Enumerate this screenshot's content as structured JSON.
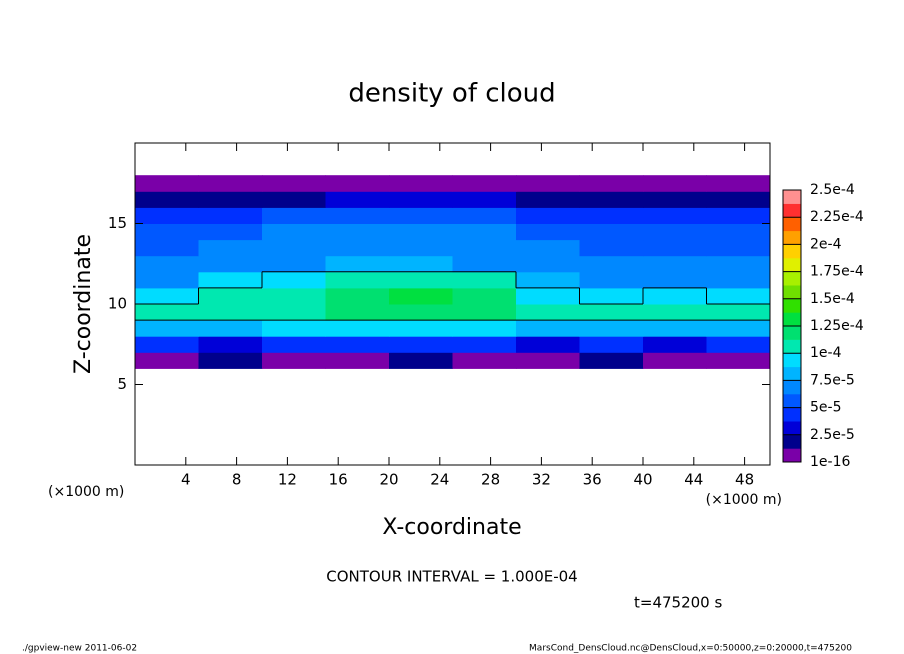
{
  "chart_data": {
    "type": "contour",
    "title": "density of cloud",
    "x_label": "X-coordinate",
    "y_label": "Z-coordinate",
    "x_unit": "(×1000 m)",
    "y_unit": "(×1000 m)",
    "contour_note": "CONTOUR INTERVAL = 1.000E-04",
    "time_note": "t=475200 s",
    "footer_left": "./gpview-new   2011-06-02",
    "footer_right": "MarsCond_DensCloud.nc@DensCloud,x=0:50000,z=0:20000,t=475200",
    "xlim": [
      0,
      50
    ],
    "xticks": [
      4,
      8,
      12,
      16,
      20,
      24,
      28,
      32,
      36,
      40,
      44,
      48
    ],
    "ylim": [
      0,
      20
    ],
    "yticks": [
      5,
      10,
      15
    ],
    "x": [
      2.5,
      7.5,
      12.5,
      17.5,
      22.5,
      27.5,
      32.5,
      37.5,
      42.5,
      47.5
    ],
    "y": [
      6.5,
      7.5,
      8.5,
      9.5,
      10.5,
      11.5,
      12.5,
      13.5,
      14.5,
      15.5,
      16.5,
      17.5
    ],
    "values": [
      [
        1e-05,
        1.5e-05,
        1e-05,
        1e-05,
        1.5e-05,
        1e-05,
        1e-05,
        1.5e-05,
        1e-05,
        1e-05
      ],
      [
        4e-05,
        3.5e-05,
        4.5e-05,
        4e-05,
        4.5e-05,
        4e-05,
        3.5e-05,
        4e-05,
        3.5e-05,
        4e-05
      ],
      [
        8e-05,
        8.5e-05,
        9e-05,
        9e-05,
        9.5e-05,
        9e-05,
        8.5e-05,
        8.5e-05,
        8.5e-05,
        8e-05
      ],
      [
        0.000105,
        0.00011,
        0.00011,
        0.000115,
        0.00012,
        0.000125,
        0.00011,
        0.000105,
        0.00011,
        0.000105
      ],
      [
        9.5e-05,
        0.000105,
        0.00011,
        0.00012,
        0.00013,
        0.000125,
        0.0001,
        9.5e-05,
        0.0001,
        9.5e-05
      ],
      [
        7.5e-05,
        9e-05,
        0.0001,
        0.000105,
        0.00011,
        0.000105,
        8e-05,
        7.5e-05,
        7.5e-05,
        7e-05
      ],
      [
        6.5e-05,
        7e-05,
        7.5e-05,
        8e-05,
        8e-05,
        7.5e-05,
        7e-05,
        6.5e-05,
        6.5e-05,
        6.5e-05
      ],
      [
        6e-05,
        6.5e-05,
        7e-05,
        7e-05,
        7.5e-05,
        7e-05,
        6.5e-05,
        6e-05,
        6e-05,
        6e-05
      ],
      [
        5.5e-05,
        6e-05,
        6.5e-05,
        6.5e-05,
        7e-05,
        6.5e-05,
        6e-05,
        5.5e-05,
        5.5e-05,
        5.5e-05
      ],
      [
        4.5e-05,
        5e-05,
        5.5e-05,
        5.5e-05,
        6e-05,
        5.5e-05,
        5e-05,
        5e-05,
        4.5e-05,
        4.5e-05
      ],
      [
        2e-05,
        2.5e-05,
        2.5e-05,
        3e-05,
        3e-05,
        3e-05,
        2.5e-05,
        2.5e-05,
        2e-05,
        2e-05
      ],
      [
        5e-06,
        5e-06,
        5e-06,
        5e-06,
        5e-06,
        5e-06,
        5e-06,
        5e-06,
        5e-06,
        5e-06
      ]
    ],
    "contour_level": 0.0001,
    "colorbar_ticks": [
      {
        "value": 1e-16,
        "label": "1e-16"
      },
      {
        "value": 2.5e-05,
        "label": "2.5e-5"
      },
      {
        "value": 5e-05,
        "label": "5e-5"
      },
      {
        "value": 7.5e-05,
        "label": "7.5e-5"
      },
      {
        "value": 0.0001,
        "label": "1e-4"
      },
      {
        "value": 0.000125,
        "label": "1.25e-4"
      },
      {
        "value": 0.00015,
        "label": "1.5e-4"
      },
      {
        "value": 0.000175,
        "label": "1.75e-4"
      },
      {
        "value": 0.0002,
        "label": "2e-4"
      },
      {
        "value": 0.000225,
        "label": "2.25e-4"
      },
      {
        "value": 0.00025,
        "label": "2.5e-4"
      }
    ],
    "colors": [
      "#7a00a8",
      "#00008c",
      "#0000d8",
      "#0030ff",
      "#0058ff",
      "#0088ff",
      "#00b4ff",
      "#00dcff",
      "#00e8b0",
      "#00e070",
      "#00e040",
      "#30e000",
      "#70e000",
      "#a8f000",
      "#e0f000",
      "#ffd000",
      "#ffa000",
      "#ff6000",
      "#ff3030",
      "#ff9090"
    ]
  }
}
